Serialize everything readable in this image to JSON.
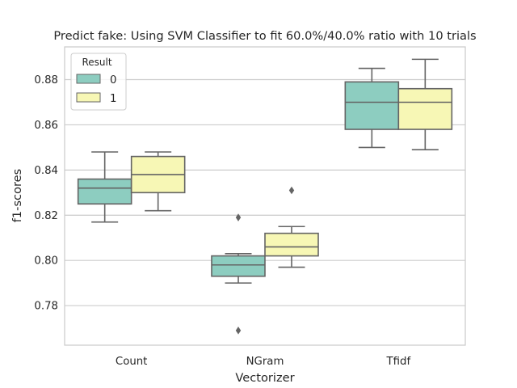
{
  "chart_data": {
    "type": "boxplot",
    "title": "Predict fake: Using SVM Classifier to fit 60.0%/40.0% ratio with 10 trials",
    "xlabel": "Vectorizer",
    "ylabel": "f1-scores",
    "categories": [
      "Count",
      "NGram",
      "Tfidf"
    ],
    "ylim": [
      0.7625,
      0.8945
    ],
    "yticks": [
      0.78,
      0.8,
      0.82,
      0.84,
      0.86,
      0.88
    ],
    "ytick_labels": [
      "0.78",
      "0.80",
      "0.82",
      "0.84",
      "0.86",
      "0.88"
    ],
    "grid": "horizontal",
    "legend": {
      "title": "Result",
      "placement": "top-left",
      "entries": [
        {
          "name": "0",
          "color": "#8dcdc0"
        },
        {
          "name": "1",
          "color": "#f7f7b5"
        }
      ]
    },
    "series": [
      {
        "name": "0",
        "color": "#8dcdc0",
        "boxes": [
          {
            "category": "Count",
            "whislo": 0.817,
            "q1": 0.825,
            "med": 0.832,
            "q3": 0.836,
            "whishi": 0.848,
            "fliers": []
          },
          {
            "category": "NGram",
            "whislo": 0.79,
            "q1": 0.793,
            "med": 0.798,
            "q3": 0.802,
            "whishi": 0.803,
            "fliers": [
              0.819,
              0.769
            ]
          },
          {
            "category": "Tfidf",
            "whislo": 0.85,
            "q1": 0.858,
            "med": 0.87,
            "q3": 0.879,
            "whishi": 0.885,
            "fliers": []
          }
        ]
      },
      {
        "name": "1",
        "color": "#f7f7b5",
        "boxes": [
          {
            "category": "Count",
            "whislo": 0.822,
            "q1": 0.83,
            "med": 0.838,
            "q3": 0.846,
            "whishi": 0.848,
            "fliers": []
          },
          {
            "category": "NGram",
            "whislo": 0.797,
            "q1": 0.802,
            "med": 0.806,
            "q3": 0.812,
            "whishi": 0.815,
            "fliers": [
              0.831
            ]
          },
          {
            "category": "Tfidf",
            "whislo": 0.849,
            "q1": 0.858,
            "med": 0.87,
            "q3": 0.876,
            "whishi": 0.889,
            "fliers": []
          }
        ]
      }
    ]
  }
}
